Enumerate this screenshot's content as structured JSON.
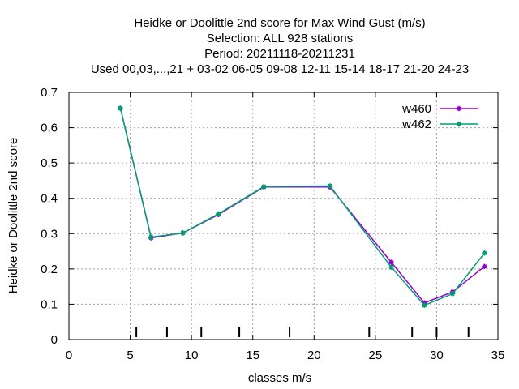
{
  "chart_data": {
    "type": "line",
    "title_lines": [
      "Heidke or Doolittle 2nd score  for Max Wind Gust (m/s)",
      "Selection: ALL    928 stations",
      "Period: 20211118-20211231",
      "Used  00,03,...,21  + 03-02 06-05 09-08 12-11 15-14 18-17 21-20 24-23"
    ],
    "xlabel": "classes m/s",
    "ylabel": "Heidke or Doolittle 2nd score",
    "xlim": [
      0,
      35
    ],
    "ylim": [
      0,
      0.7
    ],
    "xticks": [
      0,
      5,
      10,
      15,
      20,
      25,
      30,
      35
    ],
    "yticks": [
      0,
      0.1,
      0.2,
      0.3,
      0.4,
      0.5,
      0.6,
      0.7
    ],
    "xtick_labels": [
      "0",
      "5",
      "10",
      "15",
      "20",
      "25",
      "30",
      "35"
    ],
    "ytick_labels": [
      "0",
      "0.1",
      "0.2",
      "0.3",
      "0.4",
      "0.5",
      "0.6",
      "0.7"
    ],
    "grid": true,
    "legend_position": "top-right",
    "class_boundaries": [
      5.5,
      8.0,
      10.8,
      13.9,
      18.0,
      24.5,
      28.0,
      30.0,
      32.6
    ],
    "series": [
      {
        "name": "w460",
        "color": "#9400d3",
        "x": [
          4.2,
          6.7,
          9.3,
          12.2,
          15.9,
          21.3,
          26.3,
          29.0,
          31.3,
          33.9
        ],
        "y": [
          0.655,
          0.288,
          0.302,
          0.354,
          0.432,
          0.432,
          0.219,
          0.104,
          0.135,
          0.207
        ]
      },
      {
        "name": "w462",
        "color": "#009e73",
        "x": [
          4.2,
          6.7,
          9.3,
          12.2,
          15.9,
          21.3,
          26.3,
          29.0,
          31.3,
          33.9
        ],
        "y": [
          0.655,
          0.29,
          0.302,
          0.356,
          0.433,
          0.435,
          0.205,
          0.097,
          0.13,
          0.245
        ]
      }
    ]
  }
}
